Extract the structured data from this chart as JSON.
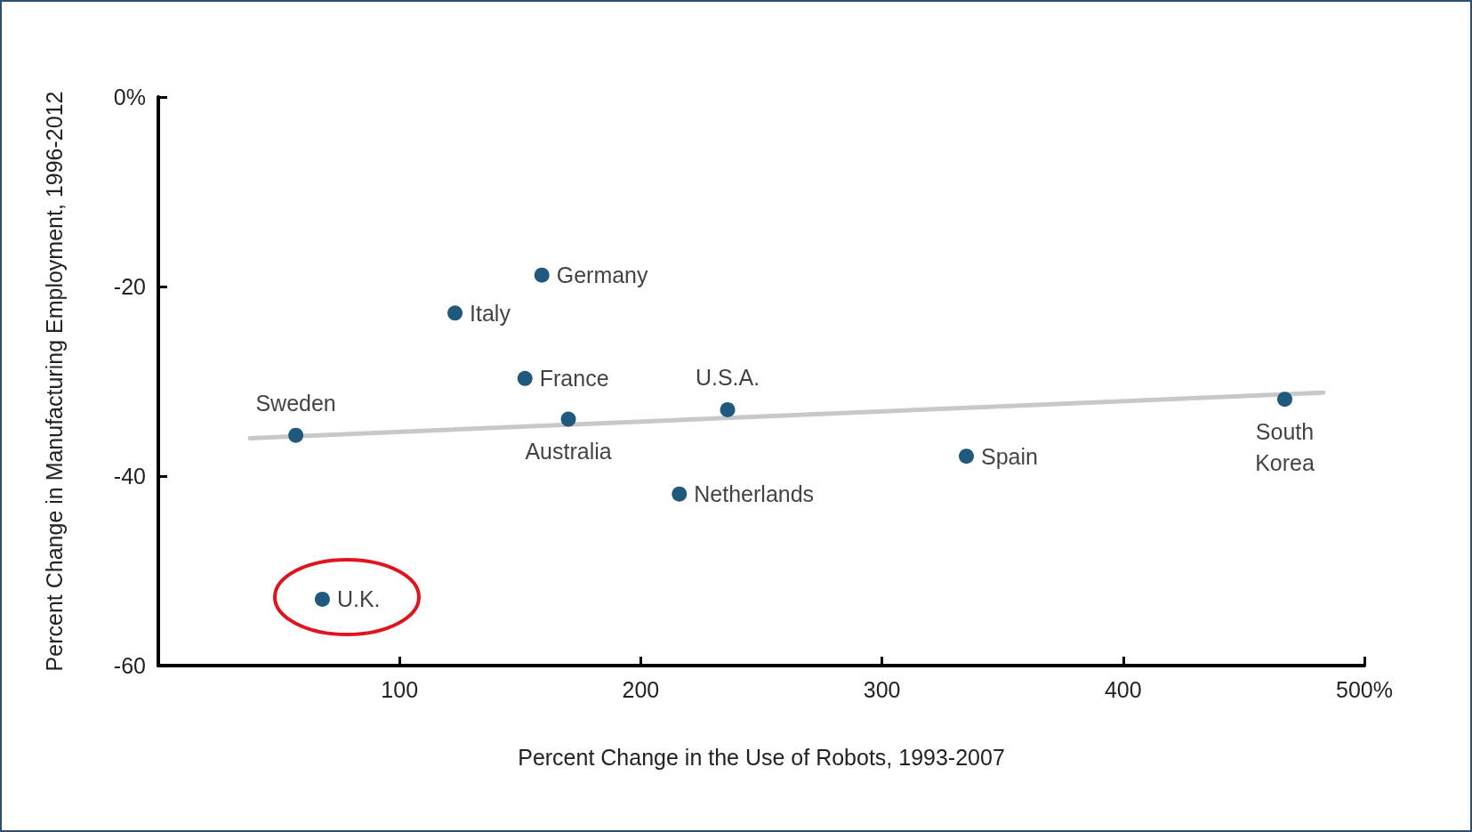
{
  "chart_data": {
    "type": "scatter",
    "xlabel": "Percent Change in the Use of Robots, 1993-2007",
    "ylabel": "Percent Change in Manufacturing Employment, 1996-2012",
    "xlim": [
      0,
      500
    ],
    "xticks": [
      100,
      200,
      300,
      400,
      {
        "value": 500,
        "label": "500%"
      }
    ],
    "ylim": [
      -60,
      0
    ],
    "yticks": [
      -60,
      -40,
      -20,
      {
        "value": 0,
        "label": "0%"
      }
    ],
    "grid": false,
    "marker": "circle",
    "series": [
      {
        "type": "line",
        "marker": "none",
        "color": "#c8c8c8",
        "x": [
          38,
          483
        ],
        "values": [
          -36,
          -31.2
        ]
      },
      {
        "color": "#1f5a7e",
        "x": [
          57,
          68,
          123,
          159,
          152,
          170,
          236,
          216,
          335,
          467
        ],
        "values": [
          -35.7,
          -53,
          -22.8,
          -18.8,
          -29.7,
          -34,
          -33,
          -41.9,
          -37.9,
          -31.9
        ]
      }
    ],
    "annotations": [
      {
        "text": "Sweden",
        "x": 57,
        "y": -35.7
      },
      {
        "text": "U.K.",
        "x": 68,
        "y": -53
      },
      {
        "text": "Italy",
        "x": 123,
        "y": -22.8
      },
      {
        "text": "Germany",
        "x": 159,
        "y": -18.8
      },
      {
        "text": "France",
        "x": 152,
        "y": -29.7
      },
      {
        "text": "Australia",
        "x": 170,
        "y": -34
      },
      {
        "text": "U.S.A.",
        "x": 236,
        "y": -33
      },
      {
        "text": "Netherlands",
        "x": 216,
        "y": -41.9
      },
      {
        "text": "Spain",
        "x": 335,
        "y": -37.9
      },
      {
        "text": "South\nKorea",
        "x": 467,
        "y": -31.9
      }
    ]
  }
}
